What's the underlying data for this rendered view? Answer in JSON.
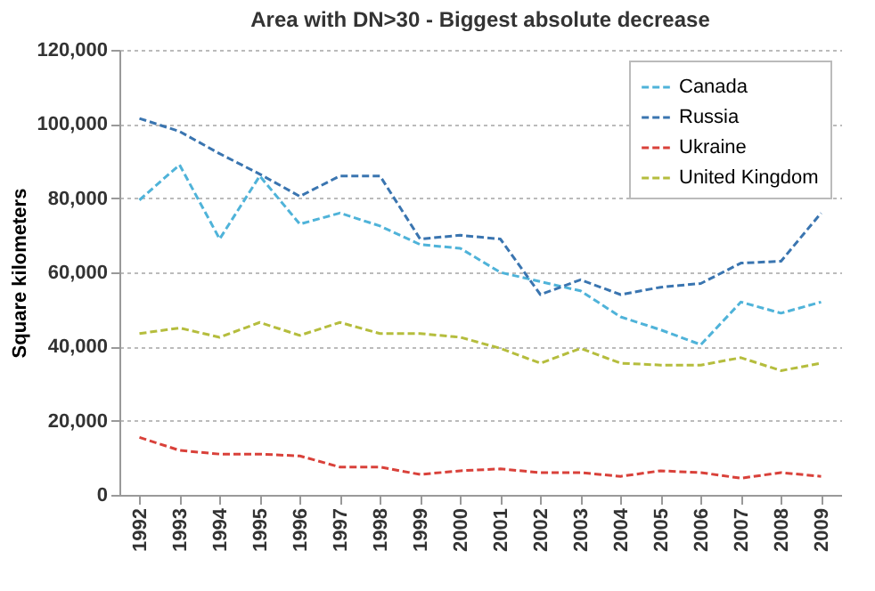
{
  "chart_data": {
    "type": "line",
    "title": "Area with DN>30 - Biggest absolute decrease",
    "ylabel": "Square kilometers",
    "categories": [
      "1992",
      "1993",
      "1994",
      "1995",
      "1996",
      "1997",
      "1998",
      "1999",
      "2000",
      "2001",
      "2002",
      "2003",
      "2004",
      "2005",
      "2006",
      "2007",
      "2008",
      "2009"
    ],
    "series": [
      {
        "name": "Canada",
        "color": "#4fb3d9",
        "values": [
          79500,
          89000,
          69000,
          86000,
          73000,
          76000,
          72500,
          67500,
          66500,
          60000,
          57500,
          55000,
          48000,
          44500,
          40500,
          52000,
          49000,
          52000
        ]
      },
      {
        "name": "Russia",
        "color": "#3a75b0",
        "values": [
          101500,
          98000,
          92000,
          86500,
          80500,
          86000,
          86000,
          69000,
          70000,
          69000,
          54000,
          58000,
          54000,
          56000,
          57000,
          62500,
          63000,
          76000
        ]
      },
      {
        "name": "Ukraine",
        "color": "#d9413a",
        "values": [
          15500,
          12000,
          11000,
          11000,
          10500,
          7500,
          7500,
          5500,
          6500,
          7000,
          6000,
          6000,
          5000,
          6500,
          6000,
          4500,
          6000,
          5000
        ]
      },
      {
        "name": "United Kingdom",
        "color": "#b5bd3d",
        "values": [
          43500,
          45000,
          42500,
          46500,
          43000,
          46500,
          43500,
          43500,
          42500,
          39500,
          35500,
          39500,
          35500,
          35000,
          35000,
          37000,
          33500,
          35500
        ]
      }
    ],
    "ylim": [
      0,
      120000
    ],
    "yticks": [
      0,
      {
        "value": 20000,
        "label": "20,000"
      },
      {
        "value": 40000,
        "label": "40,000"
      },
      {
        "value": 60000,
        "label": "60,000"
      },
      {
        "value": 80000,
        "label": "80,000"
      },
      {
        "value": 100000,
        "label": "100,000"
      },
      {
        "value": 120000,
        "label": "120,000"
      }
    ],
    "grid": "y",
    "legend": "top right",
    "line_style": "dashed",
    "marker": "none"
  }
}
